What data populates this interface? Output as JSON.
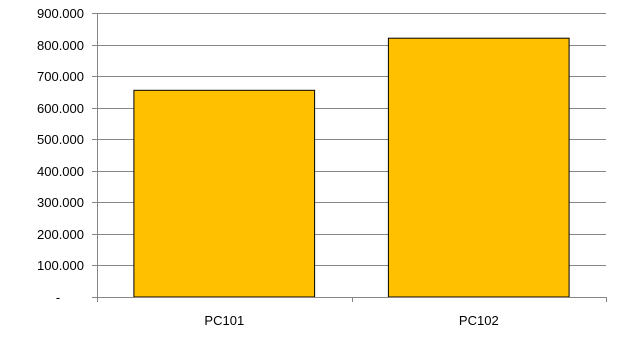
{
  "chart_data": {
    "type": "bar",
    "categories": [
      "PC101",
      "PC102"
    ],
    "values": [
      655000,
      820000
    ],
    "ylim": [
      0,
      900000
    ],
    "y_ticks": [
      {
        "value": 0,
        "label": "-"
      },
      {
        "value": 100000,
        "label": "100.000"
      },
      {
        "value": 200000,
        "label": "200.000"
      },
      {
        "value": 300000,
        "label": "300.000"
      },
      {
        "value": 400000,
        "label": "400.000"
      },
      {
        "value": 500000,
        "label": "500.000"
      },
      {
        "value": 600000,
        "label": "600.000"
      },
      {
        "value": 700000,
        "label": "700.000"
      },
      {
        "value": 800000,
        "label": "800.000"
      },
      {
        "value": 900000,
        "label": "900.000"
      }
    ],
    "title": "",
    "xlabel": "",
    "ylabel": "",
    "grid": true,
    "legend": "none",
    "bar_color": "#FFC000",
    "bar_outline_color": "#000000",
    "grid_color": "#868686"
  }
}
